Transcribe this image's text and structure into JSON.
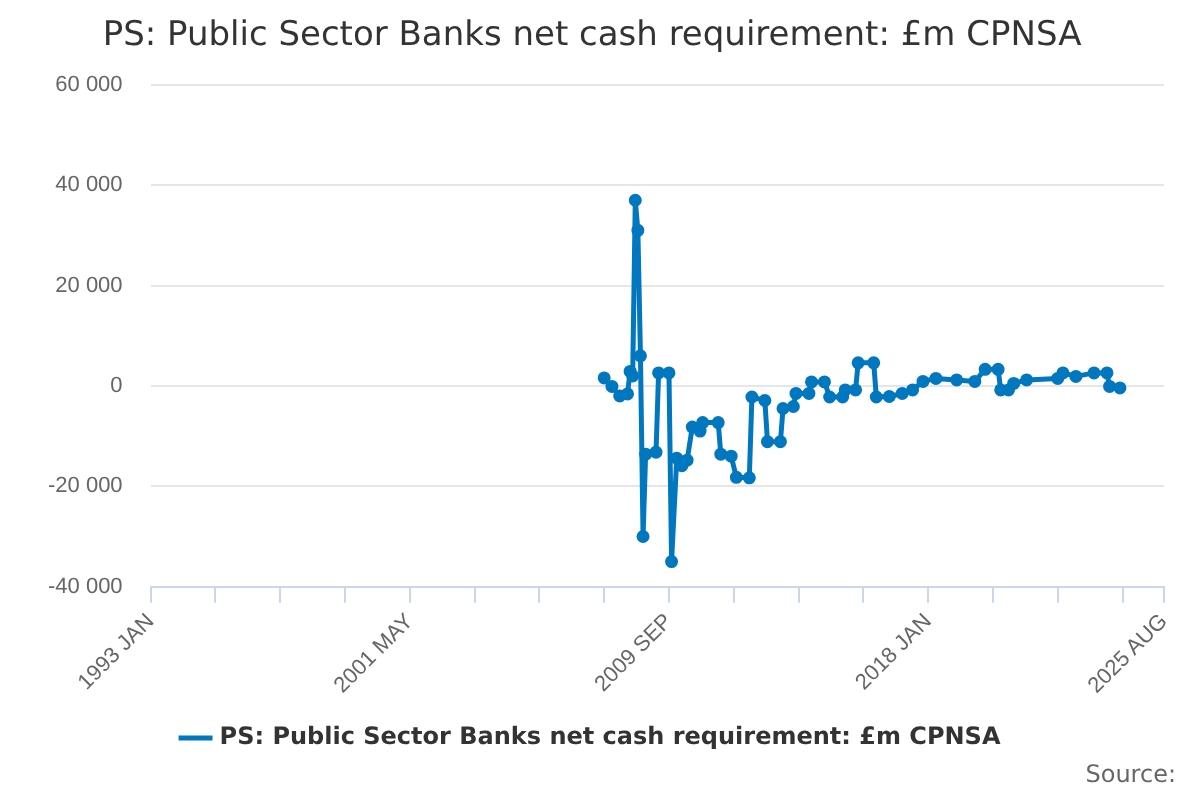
{
  "chart_data": {
    "type": "line",
    "title": "PS: Public Sector Banks net cash requirement: £m CPNSA",
    "x": [
      "2007-08",
      "2007-11",
      "2008-02",
      "2008-05",
      "2008-06",
      "2008-07",
      "2008-08",
      "2008-09",
      "2008-10",
      "2008-11",
      "2008-12",
      "2009-04",
      "2009-05",
      "2009-09",
      "2009-10",
      "2009-12",
      "2010-02",
      "2010-04",
      "2010-06",
      "2010-09",
      "2010-10",
      "2011-04",
      "2011-05",
      "2011-09",
      "2011-11",
      "2012-04",
      "2012-05",
      "2012-10",
      "2012-11",
      "2013-04",
      "2013-05",
      "2013-09",
      "2013-10",
      "2014-03",
      "2014-04",
      "2014-09",
      "2014-11",
      "2015-04",
      "2015-05",
      "2015-09",
      "2015-10",
      "2016-04",
      "2016-05",
      "2016-10",
      "2017-03",
      "2017-07",
      "2017-11",
      "2018-04",
      "2018-12",
      "2019-07",
      "2019-11",
      "2020-04",
      "2020-05",
      "2020-08",
      "2020-10",
      "2021-03",
      "2022-03",
      "2022-05",
      "2022-10",
      "2023-05",
      "2023-10",
      "2023-11",
      "2024-03"
    ],
    "series": [
      {
        "name": "PS: Public Sector Banks net cash requirement: £m CPNSA",
        "color": "#0077bf",
        "values": [
          1600,
          -100,
          -2000,
          -1600,
          2900,
          2000,
          37000,
          31000,
          6000,
          -30000,
          -13600,
          -13200,
          2600,
          2600,
          -35000,
          -14400,
          -15900,
          -14800,
          -8200,
          -9000,
          -7300,
          -7300,
          -13600,
          -14000,
          -18200,
          -18300,
          -2200,
          -2900,
          -11100,
          -11100,
          -4500,
          -4100,
          -1500,
          -1500,
          800,
          800,
          -2200,
          -2200,
          -800,
          -800,
          4600,
          4600,
          -2200,
          -2100,
          -1500,
          -800,
          900,
          1500,
          1200,
          900,
          3300,
          3300,
          -800,
          -800,
          500,
          1200,
          1500,
          2600,
          1900,
          2600,
          2600,
          -100,
          -400
        ]
      }
    ],
    "xlim": [
      "1993-01",
      "2025-08"
    ],
    "xticks": [
      {
        "value": "1993-01",
        "label": "1993 JAN"
      },
      {
        "value": "1995-02",
        "label": null
      },
      {
        "value": "1997-03",
        "label": null
      },
      {
        "value": "1999-04",
        "label": null
      },
      {
        "value": "2001-05",
        "label": "2001 MAY"
      },
      {
        "value": "2003-06",
        "label": null
      },
      {
        "value": "2005-07",
        "label": null
      },
      {
        "value": "2007-08",
        "label": null
      },
      {
        "value": "2009-09",
        "label": "2009 SEP"
      },
      {
        "value": "2011-10",
        "label": null
      },
      {
        "value": "2013-11",
        "label": null
      },
      {
        "value": "2015-12",
        "label": null
      },
      {
        "value": "2018-01",
        "label": "2018 JAN"
      },
      {
        "value": "2020-02",
        "label": null
      },
      {
        "value": "2022-03",
        "label": null
      },
      {
        "value": "2024-04",
        "label": null
      },
      {
        "value": "2025-08",
        "label": "2025 AUG"
      }
    ],
    "ylim": [
      -40000,
      60000
    ],
    "yticks": [
      {
        "value": -40000,
        "label": "-40 000"
      },
      {
        "value": -20000,
        "label": "-20 000"
      },
      0,
      {
        "value": 20000,
        "label": "20 000"
      },
      {
        "value": 40000,
        "label": "40 000"
      },
      {
        "value": 60000,
        "label": "60 000"
      }
    ],
    "grid": "y",
    "legend": "bottom",
    "marker": "circle",
    "line_style": "solid",
    "annotations": [
      "Source:"
    ]
  }
}
